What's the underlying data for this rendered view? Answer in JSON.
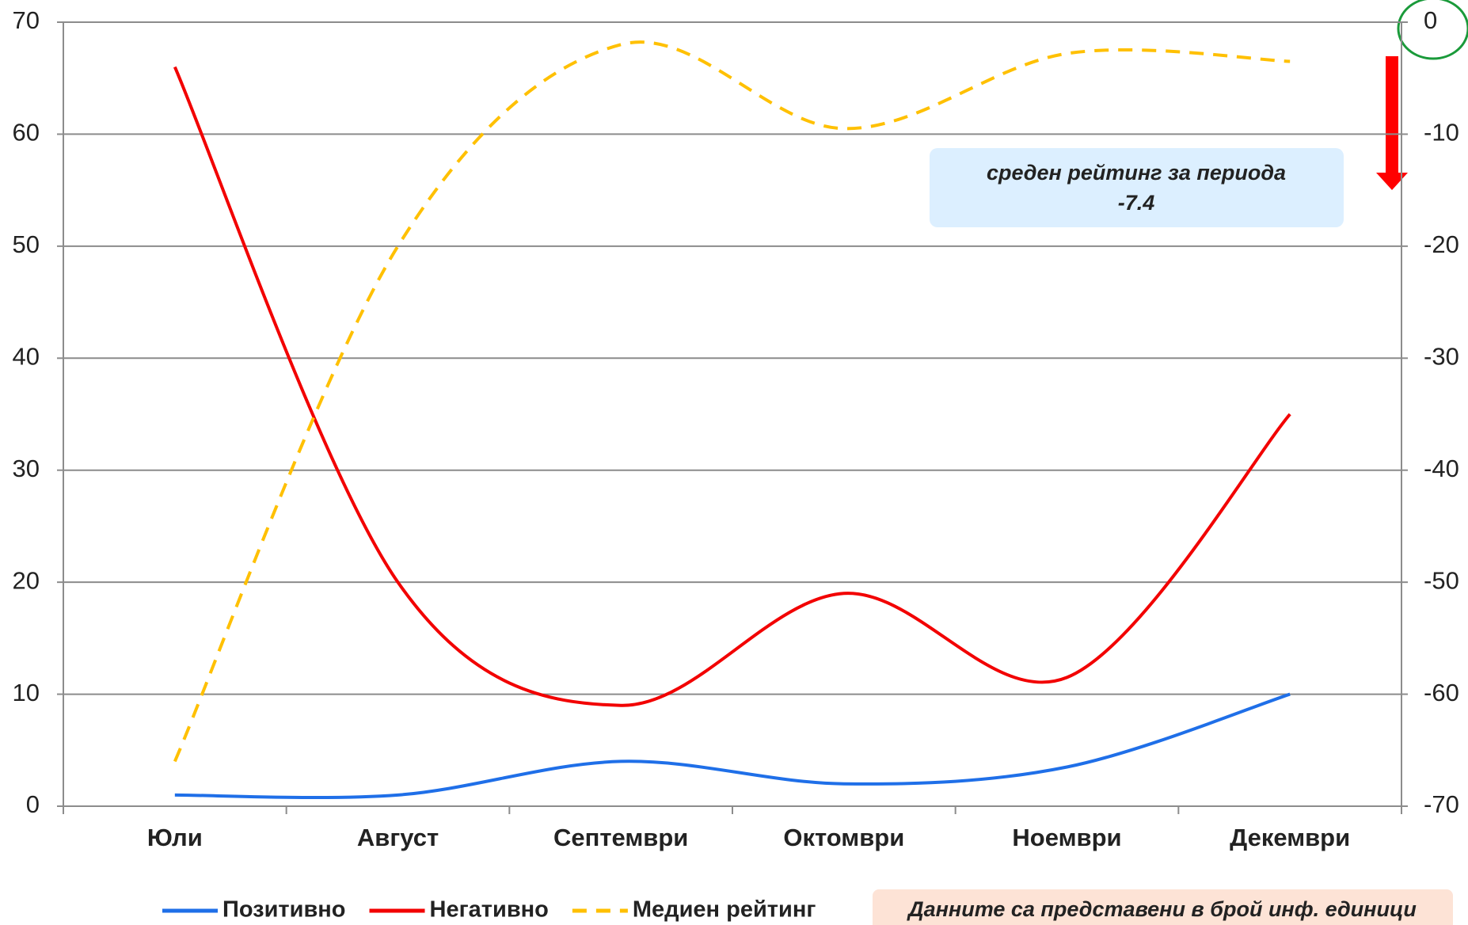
{
  "chart_data": {
    "type": "line",
    "categories": [
      "Юли",
      "Август",
      "Септември",
      "Октомври",
      "Ноември",
      "Декември"
    ],
    "series": [
      {
        "name": "Позитивно",
        "color": "#1f6fe8",
        "values": [
          1,
          1,
          4,
          2,
          3.5,
          10
        ]
      },
      {
        "name": "Негативно",
        "color": "#f20000",
        "values": [
          66,
          20,
          9,
          19,
          11.5,
          35
        ]
      },
      {
        "name": "Медиен рейтинг",
        "color": "#ffc000",
        "dashed": true,
        "axis": "y2",
        "values": [
          -66,
          -20,
          -2,
          -9.5,
          -2.8,
          -3.5
        ]
      }
    ],
    "ylim": [
      0,
      70
    ],
    "yticks": [
      0,
      10,
      20,
      30,
      40,
      50,
      60,
      70
    ],
    "y2lim": [
      -70,
      0
    ],
    "y2ticks": [
      -70,
      -60,
      -50,
      -40,
      -30,
      -20,
      -10,
      0
    ],
    "grid": true,
    "annotation": {
      "text": "среден рейтинг за периода",
      "value": "-7.4"
    },
    "note": "Данните са представени в брой инф. единици"
  }
}
